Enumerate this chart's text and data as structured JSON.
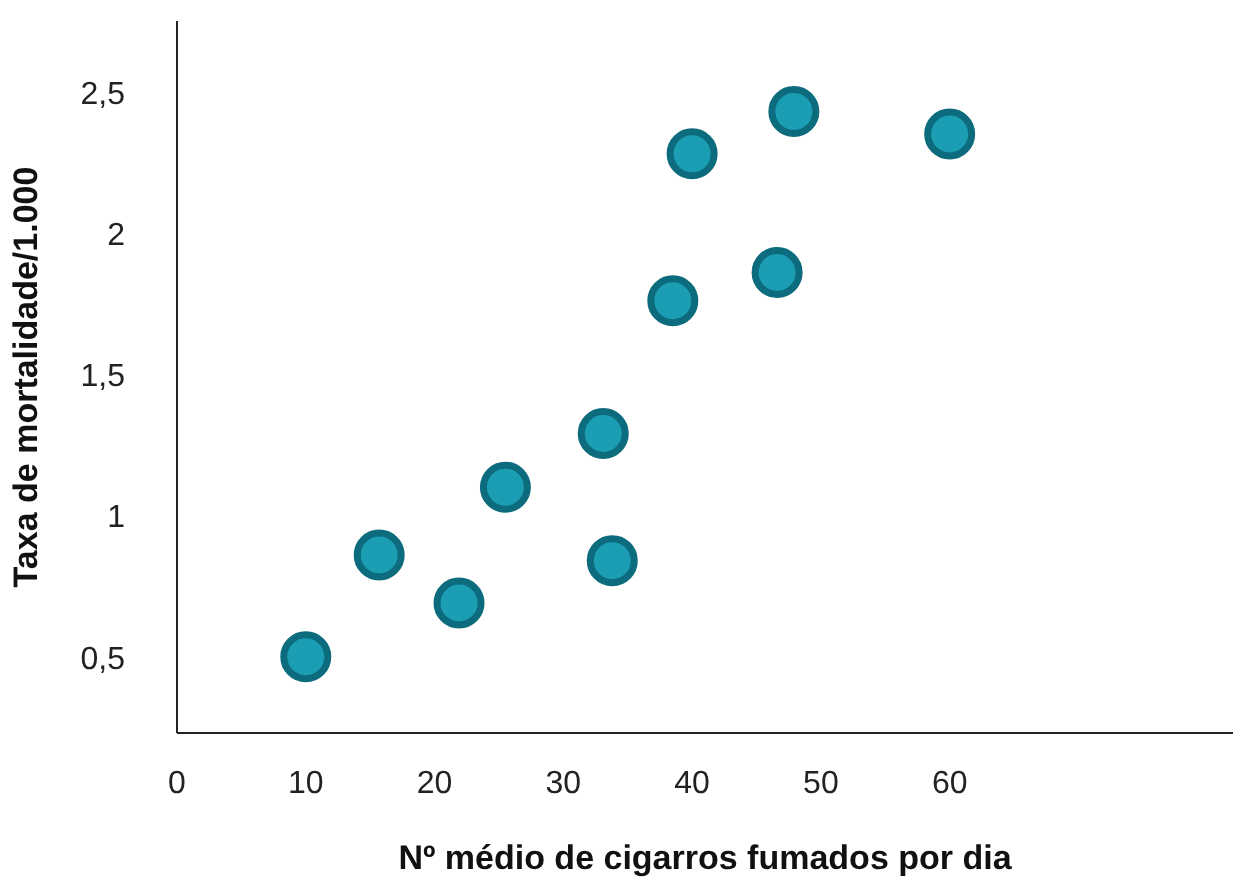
{
  "chart_data": {
    "type": "scatter",
    "xlabel": "Nº médio de cigarros fumados por dia",
    "ylabel": "Taxa de mortalidade/1.000",
    "x": [
      10,
      15.7,
      21.9,
      25.5,
      33.1,
      33.8,
      38.5,
      40,
      46.6,
      47.9,
      60
    ],
    "series": [
      {
        "color": "#1b9db3",
        "values": [
          0.5,
          0.86,
          0.69,
          1.1,
          1.29,
          0.84,
          1.76,
          2.28,
          1.86,
          2.43,
          2.35
        ]
      }
    ],
    "xlim": [
      0,
      82
    ],
    "ylim": [
      0.23,
      2.75
    ],
    "xticks": [
      0,
      10,
      20,
      30,
      40,
      50,
      60
    ],
    "yticks": [
      {
        "value": 0.5,
        "label": "0,5"
      },
      {
        "value": 1,
        "label": "1"
      },
      {
        "value": 1.5,
        "label": "1,5"
      },
      {
        "value": 2,
        "label": "2"
      },
      {
        "value": 2.5,
        "label": "2,5"
      }
    ],
    "marker": "circle"
  }
}
